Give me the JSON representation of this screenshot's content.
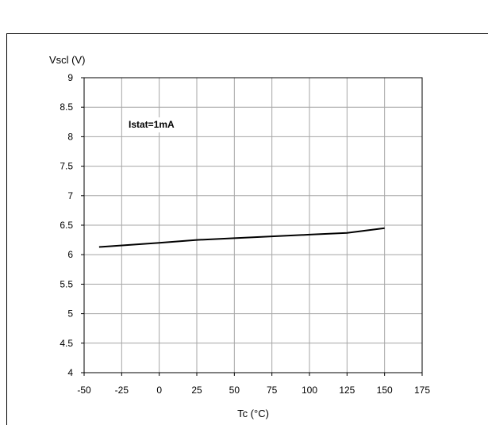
{
  "chart_data": {
    "type": "line",
    "xlabel": "Tc (°C)",
    "ylabel": "Vscl (V)",
    "xlim": [
      -50,
      175
    ],
    "ylim": [
      4,
      9
    ],
    "x_ticks": [
      -50,
      -25,
      0,
      25,
      50,
      75,
      100,
      125,
      150,
      175
    ],
    "y_ticks": [
      4,
      4.5,
      5,
      5.5,
      6,
      6.5,
      7,
      7.5,
      8,
      8.5,
      9
    ],
    "x_tick_labels": [
      "-50",
      "-25",
      "0",
      "25",
      "50",
      "75",
      "100",
      "125",
      "150",
      "175"
    ],
    "y_tick_labels": [
      "4",
      "4.5",
      "5",
      "5.5",
      "6",
      "6.5",
      "7",
      "7.5",
      "8",
      "8.5",
      "9"
    ],
    "grid": true,
    "annotation": "Istat=1mA",
    "series": [
      {
        "x": [
          -40,
          0,
          25,
          50,
          75,
          100,
          125,
          150
        ],
        "y": [
          6.13,
          6.2,
          6.25,
          6.28,
          6.31,
          6.34,
          6.37,
          6.45
        ],
        "color": "#000000"
      }
    ]
  }
}
